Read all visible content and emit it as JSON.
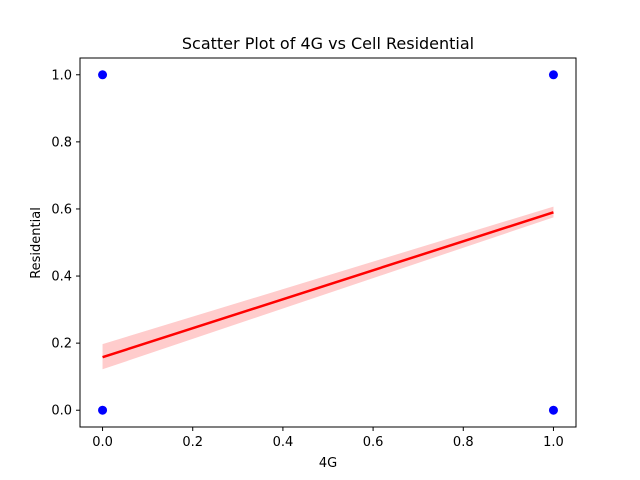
{
  "chart_data": {
    "type": "scatter",
    "title": "Scatter Plot of 4G vs Cell Residential",
    "xlabel": "4G",
    "ylabel": "Residential",
    "xlim": [
      -0.05,
      1.05
    ],
    "ylim": [
      -0.05,
      1.05
    ],
    "x_ticks": [
      "0.0",
      "0.2",
      "0.4",
      "0.6",
      "0.8",
      "1.0"
    ],
    "y_ticks": [
      "0.0",
      "0.2",
      "0.4",
      "0.6",
      "0.8",
      "1.0"
    ],
    "grid": false,
    "points": [
      {
        "x": 0,
        "y": 0
      },
      {
        "x": 0,
        "y": 1
      },
      {
        "x": 1,
        "y": 0
      },
      {
        "x": 1,
        "y": 1
      }
    ],
    "regression": {
      "x": [
        0,
        1
      ],
      "y": [
        0.158,
        0.59
      ],
      "ci_lower": [
        0.122,
        0.575
      ],
      "ci_upper": [
        0.197,
        0.607
      ]
    },
    "colors": {
      "points": "#0000ff",
      "regression_line": "#ff0000",
      "confidence_band": "#ffcccc"
    }
  }
}
